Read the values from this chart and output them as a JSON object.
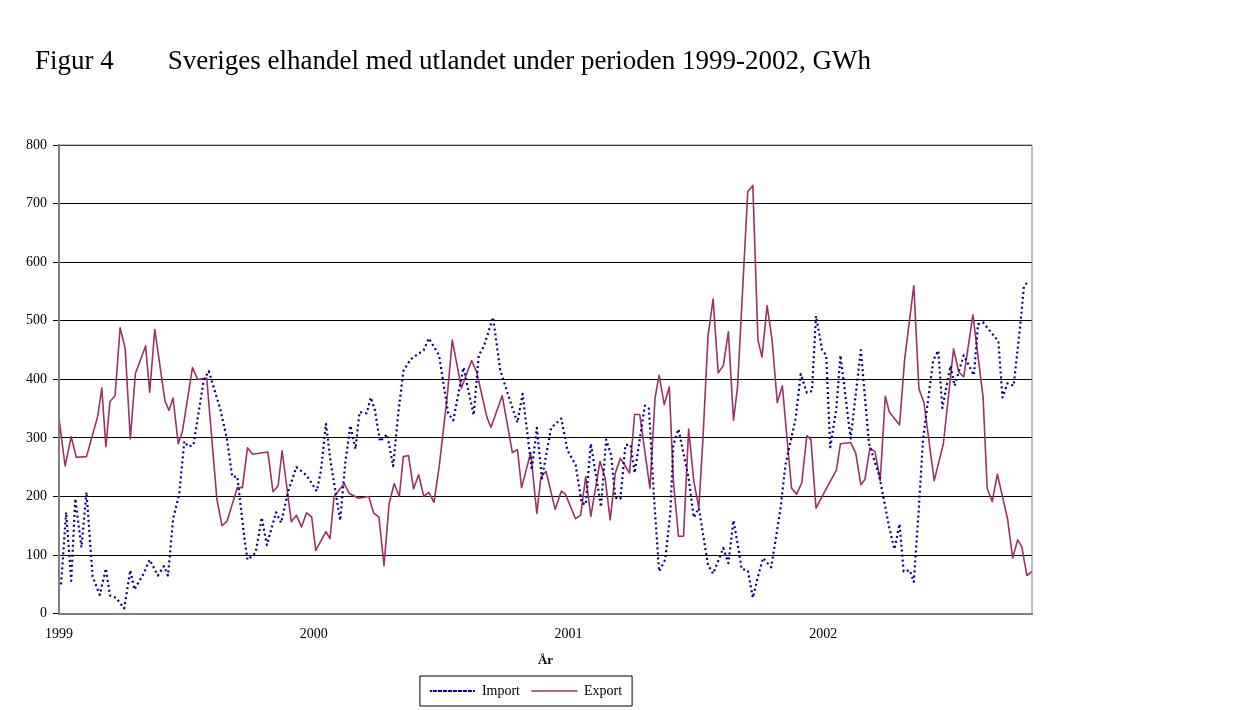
{
  "chart_data": {
    "type": "line",
    "title": "Figur 4        Sveriges elhandel med utlandet under perioden 1999-2002, GWh",
    "xlabel": "År",
    "xlim": [
      1999,
      2002.82
    ],
    "xticks": [
      1999,
      2000,
      2001,
      2002
    ],
    "ylim": [
      0,
      800
    ],
    "yticks": [
      0,
      100,
      200,
      300,
      400,
      500,
      600,
      700,
      800
    ],
    "grid": "y",
    "legend": "bottom",
    "marker": "none",
    "series": [
      {
        "name": "Import",
        "color": "#000080",
        "line_style": "dotted",
        "x": [
          1999.008,
          1999.028,
          1999.048,
          1999.064,
          1999.088,
          1999.108,
          1999.132,
          1999.16,
          1999.184,
          1999.2,
          1999.224,
          1999.256,
          1999.28,
          1999.296,
          1999.332,
          1999.356,
          1999.388,
          1999.412,
          1999.428,
          1999.448,
          1999.472,
          1999.492,
          1999.508,
          1999.528,
          1999.568,
          1999.588,
          1999.632,
          1999.66,
          1999.68,
          1999.7,
          1999.728,
          1999.74,
          1999.772,
          1999.796,
          1999.816,
          1999.852,
          1999.872,
          1999.9,
          1999.932,
          1999.972,
          2000.012,
          2000.028,
          2000.048,
          2000.068,
          2000.104,
          2000.124,
          2000.144,
          2000.164,
          2000.18,
          2000.208,
          2000.224,
          2000.24,
          2000.26,
          2000.288,
          2000.312,
          2000.332,
          2000.352,
          2000.38,
          2000.432,
          2000.452,
          2000.492,
          2000.528,
          2000.548,
          2000.588,
          2000.628,
          2000.648,
          2000.668,
          2000.704,
          2000.732,
          2000.78,
          2000.8,
          2000.82,
          2000.856,
          2000.876,
          2000.896,
          2000.932,
          2000.972,
          2000.996,
          2001.028,
          2001.052,
          2001.068,
          2001.088,
          2001.108,
          2001.128,
          2001.148,
          2001.168,
          2001.184,
          2001.204,
          2001.224,
          2001.244,
          2001.26,
          2001.3,
          2001.316,
          2001.336,
          2001.356,
          2001.38,
          2001.4,
          2001.412,
          2001.432,
          2001.472,
          2001.492,
          2001.512,
          2001.548,
          2001.568,
          2001.608,
          2001.628,
          2001.648,
          2001.668,
          2001.68,
          2001.704,
          2001.724,
          2001.744,
          2001.764,
          2001.796,
          2001.832,
          2001.852,
          2001.892,
          2001.912,
          2001.936,
          2001.956,
          2001.972,
          2001.996,
          2002.012,
          2002.028,
          2002.052,
          2002.068,
          2002.108,
          2002.148,
          2002.18,
          2002.22,
          2002.26,
          2002.28,
          2002.3,
          2002.316,
          2002.34,
          2002.356,
          2002.376,
          2002.392,
          2002.432,
          2002.452,
          2002.468,
          2002.5,
          2002.516,
          2002.552,
          2002.592,
          2002.608,
          2002.628,
          2002.688,
          2002.704,
          2002.724,
          2002.748,
          2002.776,
          2002.788,
          2002.804
        ],
        "values": [
          50,
          173,
          56,
          196,
          113,
          207,
          63,
          32,
          77,
          31,
          27,
          9,
          74,
          41,
          68,
          92,
          65,
          81,
          65,
          162,
          204,
          294,
          285,
          288,
          398,
          414,
          351,
          297,
          234,
          234,
          128,
          92,
          104,
          164,
          117,
          173,
          155,
          209,
          250,
          236,
          209,
          243,
          324,
          254,
          159,
          258,
          321,
          281,
          344,
          342,
          369,
          348,
          294,
          306,
          252,
          342,
          414,
          434,
          450,
          470,
          441,
          342,
          330,
          420,
          339,
          441,
          456,
          506,
          416,
          351,
          326,
          375,
          245,
          317,
          231,
          317,
          333,
          279,
          254,
          189,
          186,
          290,
          236,
          182,
          297,
          270,
          198,
          196,
          288,
          288,
          240,
          355,
          350,
          198,
          72,
          92,
          171,
          288,
          315,
          231,
          164,
          180,
          83,
          68,
          112,
          86,
          159,
          110,
          76,
          74,
          27,
          63,
          95,
          79,
          177,
          254,
          333,
          409,
          377,
          380,
          508,
          450,
          441,
          284,
          351,
          441,
          299,
          450,
          290,
          236,
          146,
          110,
          153,
          72,
          74,
          54,
          182,
          297,
          432,
          449,
          351,
          423,
          389,
          441,
          407,
          494,
          497,
          465,
          369,
          393,
          389,
          501,
          558,
          567
        ]
      },
      {
        "name": "Export",
        "color": "#993366",
        "line_style": "solid",
        "x": [
          1999,
          1999.024,
          1999.048,
          1999.068,
          1999.108,
          1999.152,
          1999.168,
          1999.184,
          1999.2,
          1999.22,
          1999.24,
          1999.26,
          1999.28,
          1999.3,
          1999.34,
          1999.356,
          1999.376,
          1999.416,
          1999.432,
          1999.448,
          1999.468,
          1999.484,
          1999.524,
          1999.544,
          1999.58,
          1999.62,
          1999.64,
          1999.66,
          1999.7,
          1999.72,
          1999.74,
          1999.76,
          1999.82,
          1999.84,
          1999.86,
          1999.876,
          1999.912,
          1999.932,
          1999.952,
          1999.972,
          1999.992,
          2000.008,
          2000.048,
          2000.064,
          2000.08,
          2000.12,
          2000.14,
          2000.176,
          2000.216,
          2000.236,
          2000.256,
          2000.276,
          2000.296,
          2000.316,
          2000.336,
          2000.352,
          2000.372,
          2000.392,
          2000.412,
          2000.432,
          2000.452,
          2000.472,
          2000.492,
          2000.524,
          2000.544,
          2000.58,
          2000.62,
          2000.64,
          2000.68,
          2000.696,
          2000.74,
          2000.78,
          2000.8,
          2000.816,
          2000.852,
          2000.876,
          2000.892,
          2000.912,
          2000.948,
          2000.972,
          2000.988,
          2001.028,
          2001.048,
          2001.068,
          2001.088,
          2001.124,
          2001.144,
          2001.164,
          2001.184,
          2001.204,
          2001.24,
          2001.26,
          2001.28,
          2001.32,
          2001.34,
          2001.356,
          2001.376,
          2001.396,
          2001.412,
          2001.432,
          2001.452,
          2001.472,
          2001.492,
          2001.512,
          2001.528,
          2001.548,
          2001.568,
          2001.588,
          2001.608,
          2001.628,
          2001.648,
          2001.664,
          2001.704,
          2001.724,
          2001.744,
          2001.76,
          2001.78,
          2001.8,
          2001.82,
          2001.84,
          2001.86,
          2001.876,
          2001.896,
          2001.916,
          2001.936,
          2001.952,
          2001.972,
          2002.012,
          2002.052,
          2002.068,
          2002.108,
          2002.128,
          2002.148,
          2002.164,
          2002.184,
          2002.204,
          2002.224,
          2002.244,
          2002.26,
          2002.3,
          2002.32,
          2002.356,
          2002.376,
          2002.396,
          2002.436,
          2002.472,
          2002.512,
          2002.532,
          2002.552,
          2002.588,
          2002.628,
          2002.644,
          2002.664,
          2002.684,
          2002.724,
          2002.744,
          2002.764,
          2002.78,
          2002.8,
          2002.82
        ],
        "values": [
          333,
          252,
          302,
          267,
          268,
          337,
          385,
          285,
          362,
          372,
          488,
          452,
          298,
          410,
          457,
          378,
          485,
          363,
          347,
          368,
          290,
          310,
          420,
          400,
          402,
          195,
          150,
          158,
          215,
          215,
          283,
          272,
          276,
          208,
          218,
          278,
          157,
          168,
          148,
          172,
          165,
          108,
          140,
          128,
          200,
          222,
          205,
          197,
          200,
          171,
          165,
          82,
          187,
          222,
          200,
          268,
          270,
          213,
          237,
          200,
          207,
          190,
          249,
          370,
          467,
          385,
          432,
          412,
          335,
          318,
          372,
          275,
          280,
          215,
          275,
          171,
          233,
          243,
          178,
          209,
          204,
          162,
          168,
          234,
          166,
          260,
          231,
          160,
          240,
          265,
          240,
          340,
          340,
          214,
          368,
          407,
          357,
          387,
          227,
          132,
          132,
          315,
          227,
          180,
          297,
          474,
          537,
          411,
          423,
          481,
          330,
          387,
          720,
          731,
          467,
          438,
          526,
          465,
          360,
          389,
          290,
          214,
          204,
          223,
          304,
          297,
          180,
          213,
          245,
          290,
          292,
          274,
          220,
          229,
          283,
          276,
          227,
          371,
          344,
          322,
          434,
          560,
          384,
          360,
          227,
          290,
          452,
          413,
          404,
          510,
          369,
          214,
          191,
          238,
          162,
          95,
          126,
          114,
          65,
          72
        ]
      }
    ]
  }
}
